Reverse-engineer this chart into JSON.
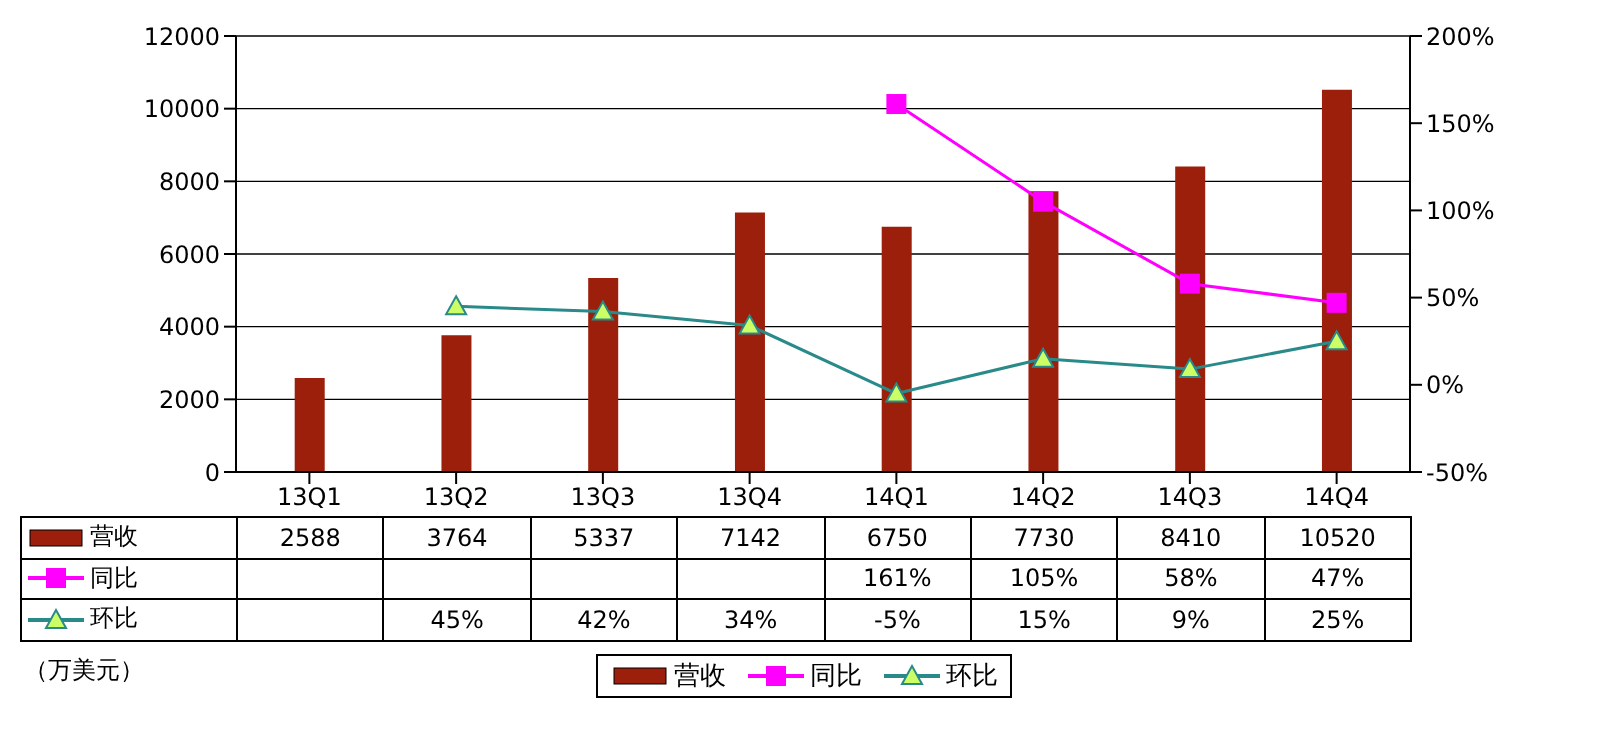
{
  "chart_data": {
    "type": "bar",
    "categories": [
      "13Q1",
      "13Q2",
      "13Q3",
      "13Q4",
      "14Q1",
      "14Q2",
      "14Q3",
      "14Q4"
    ],
    "series": [
      {
        "name": "营收",
        "color": "#9b1f0a",
        "values": [
          2588,
          3764,
          5337,
          7142,
          6750,
          7730,
          8410,
          10520
        ],
        "value_labels": [
          "2588",
          "3764",
          "5337",
          "7142",
          "6750",
          "7730",
          "8410",
          "10520"
        ]
      },
      {
        "name": "同比",
        "type": "line",
        "axis": "y2",
        "color": "#ff00ff",
        "marker": "square",
        "values": [
          null,
          null,
          null,
          null,
          161,
          105,
          58,
          47
        ],
        "value_labels": [
          null,
          null,
          null,
          null,
          "161%",
          "105%",
          "58%",
          "47%"
        ]
      },
      {
        "name": "环比",
        "type": "line",
        "axis": "y2",
        "color": "#2a8a8a",
        "marker": "triangle",
        "values": [
          null,
          45,
          42,
          34,
          -5,
          15,
          9,
          25
        ],
        "value_labels": [
          null,
          "45%",
          "42%",
          "34%",
          "-5%",
          "15%",
          "9%",
          "25%"
        ]
      }
    ],
    "ylim": [
      0,
      12000
    ],
    "yticks": [
      0,
      2000,
      4000,
      6000,
      8000,
      10000,
      12000
    ],
    "y2lim": [
      -50,
      200
    ],
    "y2ticks": [
      {
        "value": -50,
        "label": "-50%"
      },
      {
        "value": 0,
        "label": "0%"
      },
      {
        "value": 50,
        "label": "50%"
      },
      {
        "value": 100,
        "label": "100%"
      },
      {
        "value": 150,
        "label": "150%"
      },
      {
        "value": 200,
        "label": "200%"
      }
    ],
    "grid": "y",
    "legend": "bottom",
    "annotations": [
      "（万美元）"
    ]
  }
}
